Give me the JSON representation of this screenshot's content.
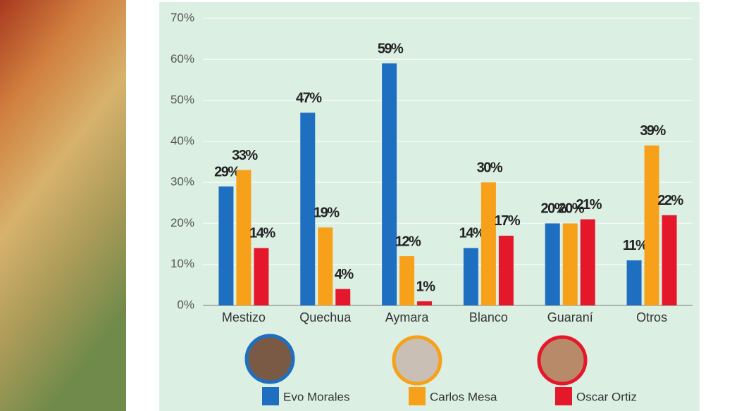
{
  "chart_data": {
    "type": "bar",
    "categories": [
      "Mestizo",
      "Quechua",
      "Aymara",
      "Blanco",
      "Guaraní",
      "Otros"
    ],
    "series": [
      {
        "name": "Evo Morales",
        "color": "#1f6fc0",
        "values": [
          29,
          47,
          59,
          14,
          20,
          11
        ],
        "value_labels": [
          "29%",
          "47%",
          "59%",
          "14%",
          "20%",
          "11%"
        ]
      },
      {
        "name": "Carlos Mesa",
        "color": "#f7a11a",
        "values": [
          33,
          19,
          12,
          30,
          20,
          39
        ],
        "value_labels": [
          "33%",
          "19%",
          "12%",
          "30%",
          "20%",
          "39%"
        ]
      },
      {
        "name": "Oscar Ortiz",
        "color": "#e5172b",
        "values": [
          14,
          4,
          1,
          17,
          21,
          22
        ],
        "value_labels": [
          "14%",
          "4%",
          "1%",
          "17%",
          "21%",
          "22%"
        ]
      }
    ],
    "ylim": [
      0,
      70
    ],
    "yticks": [
      {
        "value": 0,
        "label": "0%"
      },
      {
        "value": 10,
        "label": "10%"
      },
      {
        "value": 20,
        "label": "20%"
      },
      {
        "value": 30,
        "label": "30%"
      },
      {
        "value": 40,
        "label": "40%"
      },
      {
        "value": 50,
        "label": "50%"
      },
      {
        "value": 60,
        "label": "60%"
      },
      {
        "value": 70,
        "label": "70%"
      }
    ],
    "grid": true
  }
}
